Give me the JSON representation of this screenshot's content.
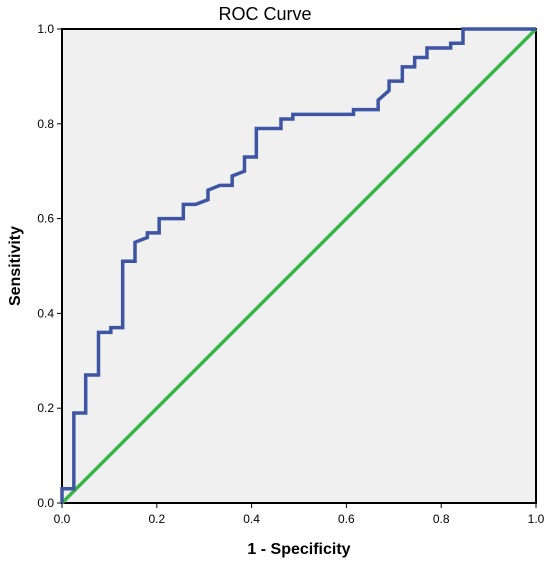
{
  "chart_data": {
    "type": "line",
    "title": "ROC Curve",
    "xlabel": "1 - Specificity",
    "ylabel": "Sensitivity",
    "xlim": [
      0,
      1
    ],
    "ylim": [
      0,
      1
    ],
    "xticks": [
      "0.0",
      "0.2",
      "0.4",
      "0.6",
      "0.8",
      "1.0"
    ],
    "yticks": [
      "0.0",
      "0.2",
      "0.4",
      "0.6",
      "0.8",
      "1.0"
    ],
    "grid": false,
    "legend": "none",
    "plot_background": "#f0f0f0",
    "series": [
      {
        "color": "#3e55a4",
        "points": [
          [
            0.0,
            0.0
          ],
          [
            0.0,
            0.03
          ],
          [
            0.025,
            0.03
          ],
          [
            0.025,
            0.19
          ],
          [
            0.05,
            0.19
          ],
          [
            0.05,
            0.27
          ],
          [
            0.077,
            0.27
          ],
          [
            0.077,
            0.36
          ],
          [
            0.103,
            0.36
          ],
          [
            0.103,
            0.37
          ],
          [
            0.128,
            0.37
          ],
          [
            0.128,
            0.51
          ],
          [
            0.154,
            0.51
          ],
          [
            0.154,
            0.55
          ],
          [
            0.18,
            0.56
          ],
          [
            0.18,
            0.57
          ],
          [
            0.205,
            0.57
          ],
          [
            0.205,
            0.6
          ],
          [
            0.256,
            0.6
          ],
          [
            0.256,
            0.63
          ],
          [
            0.282,
            0.63
          ],
          [
            0.308,
            0.64
          ],
          [
            0.308,
            0.66
          ],
          [
            0.333,
            0.67
          ],
          [
            0.359,
            0.67
          ],
          [
            0.359,
            0.69
          ],
          [
            0.385,
            0.7
          ],
          [
            0.385,
            0.73
          ],
          [
            0.41,
            0.73
          ],
          [
            0.41,
            0.79
          ],
          [
            0.462,
            0.79
          ],
          [
            0.462,
            0.81
          ],
          [
            0.487,
            0.81
          ],
          [
            0.487,
            0.82
          ],
          [
            0.615,
            0.82
          ],
          [
            0.615,
            0.83
          ],
          [
            0.667,
            0.83
          ],
          [
            0.667,
            0.85
          ],
          [
            0.69,
            0.87
          ],
          [
            0.69,
            0.89
          ],
          [
            0.718,
            0.89
          ],
          [
            0.718,
            0.92
          ],
          [
            0.744,
            0.92
          ],
          [
            0.744,
            0.94
          ],
          [
            0.77,
            0.94
          ],
          [
            0.77,
            0.96
          ],
          [
            0.82,
            0.96
          ],
          [
            0.82,
            0.97
          ],
          [
            0.846,
            0.97
          ],
          [
            0.846,
            1.0
          ],
          [
            1.0,
            1.0
          ]
        ]
      },
      {
        "color": "#3ab54a",
        "points": [
          [
            0,
            0
          ],
          [
            1,
            1
          ]
        ]
      }
    ]
  }
}
